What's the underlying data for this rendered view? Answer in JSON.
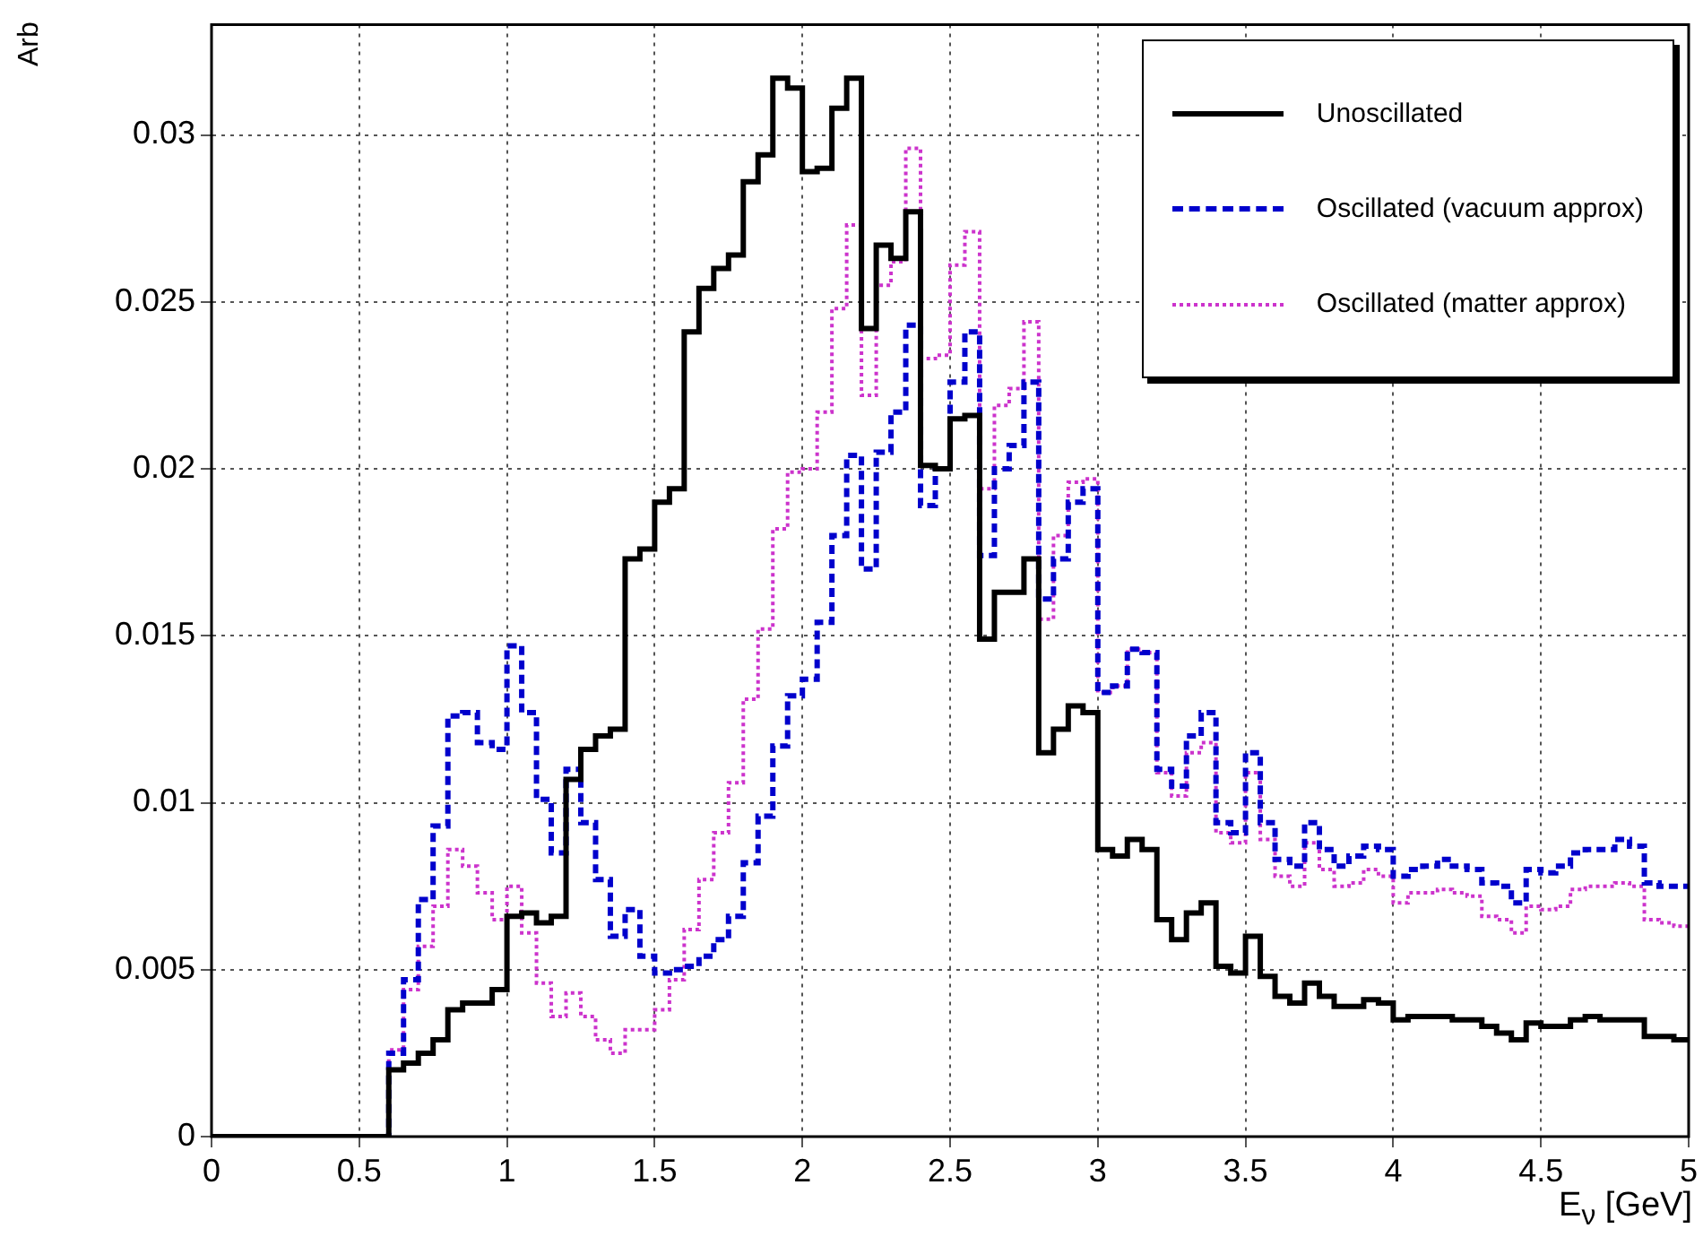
{
  "chart_data": {
    "type": "histogram",
    "xlabel": "E$_{ν}$ [GeV]",
    "ylabel": "Arb",
    "bins": [
      0,
      0.05,
      0.1,
      0.15,
      0.2,
      0.25,
      0.3,
      0.35,
      0.4,
      0.45,
      0.5,
      0.55,
      0.6,
      0.65,
      0.7,
      0.75,
      0.8,
      0.85,
      0.9,
      0.95,
      1,
      1.05,
      1.1,
      1.15,
      1.2,
      1.25,
      1.3,
      1.35,
      1.4,
      1.45,
      1.5,
      1.55,
      1.6,
      1.65,
      1.7,
      1.75,
      1.8,
      1.85,
      1.9,
      1.95,
      2,
      2.05,
      2.1,
      2.15,
      2.2,
      2.25,
      2.3,
      2.35,
      2.4,
      2.45,
      2.5,
      2.55,
      2.6,
      2.65,
      2.7,
      2.75,
      2.8,
      2.85,
      2.9,
      2.95,
      3,
      3.05,
      3.1,
      3.15,
      3.2,
      3.25,
      3.3,
      3.35,
      3.4,
      3.45,
      3.5,
      3.55,
      3.6,
      3.65,
      3.7,
      3.75,
      3.8,
      3.85,
      3.9,
      3.95,
      4,
      4.05,
      4.1,
      4.15,
      4.2,
      4.25,
      4.3,
      4.35,
      4.4,
      4.45,
      4.5,
      4.55,
      4.6,
      4.65,
      4.7,
      4.75,
      4.8,
      4.85,
      4.9,
      4.95,
      5
    ],
    "series": [
      {
        "name": "Unoscillated",
        "color": "#000000",
        "line_style": "solid",
        "values": [
          0,
          0,
          0,
          0,
          0,
          0,
          0,
          0,
          0,
          0,
          0,
          0,
          0.002,
          0.0022,
          0.0025,
          0.0029,
          0.0038,
          0.004,
          0.004,
          0.0044,
          0.0066,
          0.0067,
          0.0064,
          0.0066,
          0.0107,
          0.0116,
          0.012,
          0.0122,
          0.0173,
          0.0176,
          0.019,
          0.0194,
          0.0241,
          0.0254,
          0.026,
          0.0264,
          0.0286,
          0.0294,
          0.0317,
          0.0314,
          0.0289,
          0.029,
          0.0308,
          0.0317,
          0.0242,
          0.0267,
          0.0263,
          0.0277,
          0.0201,
          0.02,
          0.0215,
          0.0216,
          0.0149,
          0.0163,
          0.0163,
          0.0173,
          0.0115,
          0.0122,
          0.0129,
          0.0127,
          0.0086,
          0.0084,
          0.0089,
          0.0086,
          0.0065,
          0.0059,
          0.0067,
          0.007,
          0.0051,
          0.0049,
          0.006,
          0.0048,
          0.0042,
          0.004,
          0.0046,
          0.0042,
          0.0039,
          0.0039,
          0.0041,
          0.004,
          0.0035,
          0.0036,
          0.0036,
          0.0036,
          0.0035,
          0.0035,
          0.0033,
          0.0031,
          0.0029,
          0.0034,
          0.0033,
          0.0033,
          0.0035,
          0.0036,
          0.0035,
          0.0035,
          0.0035,
          0.003,
          0.003,
          0.0029
        ]
      },
      {
        "name": "Oscillated (vacuum approx)",
        "color": "#0000cc",
        "line_style": "dashed",
        "values": [
          0,
          0,
          0,
          0,
          0,
          0,
          0,
          0,
          0,
          0,
          0,
          0,
          0.0025,
          0.0047,
          0.0071,
          0.0093,
          0.0126,
          0.0127,
          0.0118,
          0.0116,
          0.0147,
          0.0127,
          0.0101,
          0.0085,
          0.011,
          0.0094,
          0.0077,
          0.006,
          0.0068,
          0.0054,
          0.0049,
          0.005,
          0.0051,
          0.0054,
          0.0059,
          0.0066,
          0.0082,
          0.0096,
          0.0117,
          0.0132,
          0.0137,
          0.0154,
          0.018,
          0.0204,
          0.017,
          0.0205,
          0.0217,
          0.0243,
          0.0189,
          0.02,
          0.0226,
          0.0241,
          0.0174,
          0.02,
          0.0207,
          0.0226,
          0.0161,
          0.0173,
          0.019,
          0.0194,
          0.0133,
          0.0135,
          0.0146,
          0.0145,
          0.011,
          0.0105,
          0.012,
          0.0127,
          0.0094,
          0.0091,
          0.0115,
          0.0094,
          0.0083,
          0.0081,
          0.0094,
          0.0086,
          0.0081,
          0.0084,
          0.0087,
          0.0086,
          0.0078,
          0.008,
          0.0081,
          0.0083,
          0.0081,
          0.008,
          0.0076,
          0.0075,
          0.007,
          0.008,
          0.0079,
          0.0081,
          0.0085,
          0.0086,
          0.0086,
          0.0089,
          0.0087,
          0.0076,
          0.0075,
          0.0075
        ]
      },
      {
        "name": "Oscillated (matter approx)",
        "color": "#cc33cc",
        "line_style": "dotted",
        "values": [
          0,
          0,
          0,
          0,
          0,
          0,
          0,
          0,
          0,
          0,
          0,
          0,
          0.0026,
          0.0044,
          0.0057,
          0.0069,
          0.0086,
          0.0081,
          0.0073,
          0.0065,
          0.0075,
          0.0061,
          0.0046,
          0.0036,
          0.0043,
          0.0036,
          0.0029,
          0.0025,
          0.0032,
          0.0032,
          0.0038,
          0.0047,
          0.0062,
          0.0077,
          0.0091,
          0.0106,
          0.0131,
          0.0152,
          0.0182,
          0.0199,
          0.02,
          0.0217,
          0.0248,
          0.0273,
          0.0222,
          0.0255,
          0.0262,
          0.0296,
          0.0233,
          0.0234,
          0.0261,
          0.0271,
          0.0194,
          0.0219,
          0.0224,
          0.0244,
          0.0155,
          0.018,
          0.0196,
          0.0197,
          0.0133,
          0.0135,
          0.0146,
          0.0145,
          0.0109,
          0.0102,
          0.0115,
          0.0118,
          0.0091,
          0.0088,
          0.0109,
          0.0089,
          0.0078,
          0.0075,
          0.0088,
          0.008,
          0.0075,
          0.0076,
          0.008,
          0.0078,
          0.007,
          0.0073,
          0.0073,
          0.0074,
          0.0073,
          0.0072,
          0.0066,
          0.0065,
          0.0061,
          0.0069,
          0.0068,
          0.0069,
          0.0074,
          0.0075,
          0.0075,
          0.0076,
          0.0075,
          0.0065,
          0.0064,
          0.0063
        ]
      }
    ],
    "xlim": [
      0,
      5
    ],
    "xticks": [
      0,
      0.5,
      1,
      1.5,
      2,
      2.5,
      3,
      3.5,
      4,
      4.5,
      5
    ],
    "ylim": [
      0,
      0.0333
    ],
    "yticks": [
      0,
      0.005,
      0.01,
      0.015,
      0.02,
      0.025,
      0.03
    ],
    "grid": true,
    "legend": "top right"
  }
}
